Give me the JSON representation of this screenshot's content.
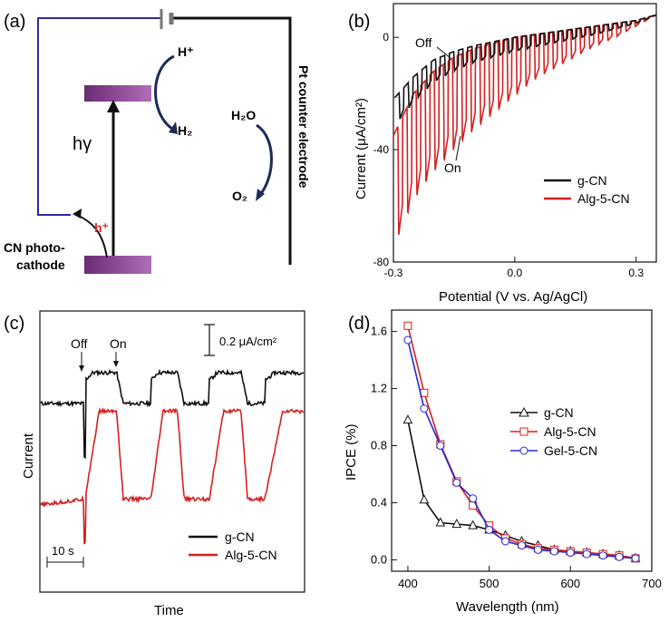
{
  "panels": {
    "a": {
      "label": "(a)",
      "h_plus": "H⁺",
      "h2": "H₂",
      "h2o": "H₂O",
      "o2": "O₂",
      "hgamma": "hγ",
      "hole": "h⁺",
      "cathode_line1": "CN photo-",
      "cathode_line2": "cathode",
      "counter_electrode": "Pt counter electrode"
    },
    "b": {
      "label": "(b)"
    },
    "c": {
      "label": "(c)"
    },
    "d": {
      "label": "(d)"
    }
  },
  "colors": {
    "black_series": "#111111",
    "red_series": "#d42020",
    "blue_series": "#2a2ad0",
    "circuit_wire": "#2c2c9a",
    "band_purple": "#8a3d92",
    "arrow_navy": "#1e2a5a",
    "hole_red": "#d43030"
  },
  "chart_data": [
    {
      "panel": "b",
      "type": "line",
      "xlabel": "Potential (V vs. Ag/AgCl)",
      "ylabel": "Current (μA/cm²)",
      "xlim": [
        -0.3,
        0.35
      ],
      "ylim": [
        -80,
        12
      ],
      "xticks": [
        "-0.3",
        "0.0",
        "0.3"
      ],
      "yticks": [
        "0",
        "-40",
        "-80"
      ],
      "xtick_values": [
        -0.3,
        0.0,
        0.3
      ],
      "ytick_values": [
        0,
        -40,
        -80
      ],
      "annotations": [
        {
          "text": "Off",
          "x": -0.22,
          "y": 3
        },
        {
          "text": "On",
          "x": -0.16,
          "y": -28
        }
      ],
      "legend_position": "center-right",
      "description": "chopped-light linear sweep, light on/off roughly every 0.02 V",
      "series": [
        {
          "name": "g-CN",
          "color": "#111111",
          "x": [
            -0.3,
            -0.25,
            -0.2,
            -0.15,
            -0.1,
            -0.05,
            0.0,
            0.05,
            0.1,
            0.15,
            0.2,
            0.25,
            0.3,
            0.35
          ],
          "dark": [
            -22,
            -14,
            -8,
            -5,
            -3,
            -1.5,
            0,
            1,
            2,
            3,
            4,
            5,
            6,
            8
          ],
          "light": [
            -32,
            -23,
            -16,
            -12,
            -9,
            -7,
            -5,
            -3.5,
            -2,
            -0.5,
            1,
            3,
            5,
            8
          ]
        },
        {
          "name": "Alg-5-CN",
          "color": "#d42020",
          "x": [
            -0.3,
            -0.25,
            -0.2,
            -0.15,
            -0.1,
            -0.05,
            0.0,
            0.05,
            0.1,
            0.15,
            0.2,
            0.25,
            0.3,
            0.35
          ],
          "dark": [
            -35,
            -20,
            -12,
            -7,
            -4,
            -2,
            0,
            1,
            2,
            3,
            4,
            5,
            6,
            8
          ],
          "light": [
            -75,
            -58,
            -48,
            -40,
            -33,
            -27,
            -21,
            -15,
            -11,
            -7,
            -3,
            0,
            4,
            8
          ]
        }
      ]
    },
    {
      "panel": "c",
      "type": "line",
      "xlabel": "Time",
      "ylabel": "Current",
      "scale_bar_current": "0.2 μA/cm²",
      "scale_bar_time": "10 s",
      "annotations": [
        "Off",
        "On"
      ],
      "legend_position": "bottom-right",
      "description": "transient photocurrent, 4 on/off cycles, curves vertically offset",
      "series": [
        {
          "name": "g-CN",
          "color": "#111111",
          "dark_level": 0.0,
          "light_level": 0.2,
          "spike": -0.35
        },
        {
          "name": "Alg-5-CN",
          "color": "#d42020",
          "dark_level": -0.62,
          "light_level": -0.05,
          "spike": -0.9
        }
      ]
    },
    {
      "panel": "d",
      "type": "line",
      "xlabel": "Wavelength (nm)",
      "ylabel": "IPCE (%)",
      "xlim": [
        380,
        700
      ],
      "ylim": [
        -0.08,
        1.75
      ],
      "xticks": [
        400,
        500,
        600,
        700
      ],
      "yticks": [
        0.0,
        0.4,
        0.8,
        1.2,
        1.6
      ],
      "ytick_labels": [
        "0.0",
        "0.4",
        "0.8",
        "1.2",
        "1.6"
      ],
      "legend_position": "center-right",
      "series": [
        {
          "name": "g-CN",
          "color": "#111111",
          "marker": "triangle",
          "x": [
            400,
            420,
            440,
            460,
            480,
            500,
            520,
            540,
            560,
            580,
            600,
            620,
            640,
            660,
            680
          ],
          "y": [
            0.98,
            0.42,
            0.26,
            0.25,
            0.24,
            0.21,
            0.17,
            0.13,
            0.1,
            0.07,
            0.06,
            0.05,
            0.04,
            0.03,
            0.01
          ]
        },
        {
          "name": "Alg-5-CN",
          "color": "#d42020",
          "marker": "square",
          "x": [
            400,
            420,
            440,
            460,
            480,
            500,
            520,
            540,
            560,
            580,
            600,
            620,
            640,
            660,
            680
          ],
          "y": [
            1.64,
            1.17,
            0.81,
            0.55,
            0.38,
            0.24,
            0.15,
            0.11,
            0.08,
            0.07,
            0.06,
            0.05,
            0.04,
            0.03,
            0.01
          ]
        },
        {
          "name": "Gel-5-CN",
          "color": "#2a2ad0",
          "marker": "circle",
          "x": [
            400,
            420,
            440,
            460,
            480,
            500,
            520,
            540,
            560,
            580,
            600,
            620,
            640,
            660,
            680
          ],
          "y": [
            1.54,
            1.06,
            0.8,
            0.54,
            0.43,
            0.21,
            0.13,
            0.1,
            0.07,
            0.06,
            0.05,
            0.04,
            0.03,
            0.02,
            0.01
          ]
        }
      ]
    }
  ]
}
